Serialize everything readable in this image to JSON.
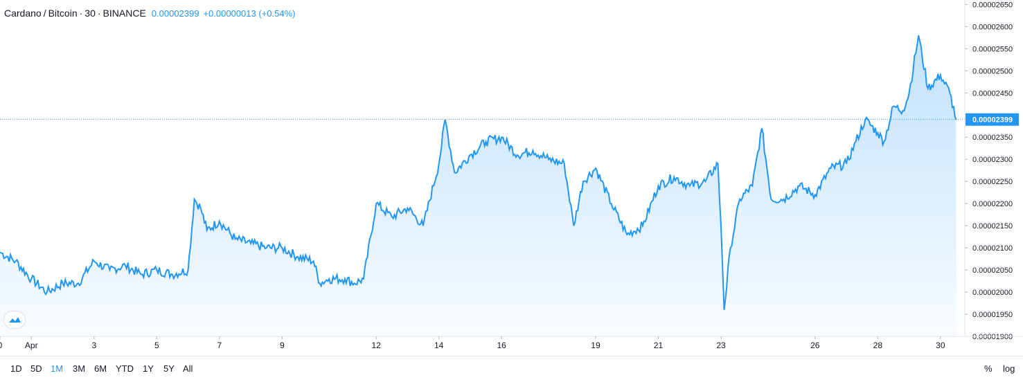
{
  "header": {
    "symbol": "Cardano",
    "sep": "/",
    "quote": "Bitcoin",
    "sep2": "·",
    "interval": "30",
    "sep3": "·",
    "exchange": "BINANCE",
    "last_value": "0.00002399",
    "change": "+0.00000013 (+0.54%)"
  },
  "price_tag": "0.00002399",
  "toolbar": {
    "timeframes": [
      "1D",
      "5D",
      "1M",
      "3M",
      "6M",
      "YTD",
      "1Y",
      "5Y",
      "All"
    ],
    "active_timeframe": "1M",
    "percent": "%",
    "log": "log"
  },
  "colors": {
    "line": "#2196f3",
    "accent": "#2196f3",
    "grid": "#e0e3eb"
  },
  "icons": {
    "logo": "tradingview-logo-icon"
  },
  "chart_data": {
    "type": "area",
    "ylim": [
      1.9e-05,
      2.66e-05
    ],
    "y_ticks": [
      "0.00002650",
      "0.00002600",
      "0.00002550",
      "0.00002500",
      "0.00002450",
      "0.00002350",
      "0.00002300",
      "0.00002250",
      "0.00002200",
      "0.00002150",
      "0.00002100",
      "0.00002050",
      "0.00002000",
      "0.00001950",
      "0.00001900"
    ],
    "y_tick_values": [
      2.65e-05,
      2.6e-05,
      2.55e-05,
      2.5e-05,
      2.45e-05,
      2.35e-05,
      2.3e-05,
      2.25e-05,
      2.2e-05,
      2.15e-05,
      2.1e-05,
      2.05e-05,
      2e-05,
      1.95e-05,
      1.9e-05
    ],
    "x_ticks": [
      "0",
      "Apr",
      "3",
      "5",
      "7",
      "9",
      "12",
      "14",
      "16",
      "19",
      "21",
      "23",
      "26",
      "28",
      "30"
    ],
    "x_tick_days": [
      0,
      1,
      3,
      5,
      7,
      9,
      12,
      14,
      16,
      19,
      21,
      23,
      26,
      28,
      30
    ],
    "x": [
      0,
      0.5,
      1.0,
      1.5,
      2.0,
      2.5,
      3.0,
      3.5,
      4.0,
      4.5,
      5.0,
      5.5,
      6.0,
      6.2,
      6.4,
      6.6,
      7.0,
      7.5,
      8.0,
      8.5,
      9.0,
      9.5,
      10.0,
      10.2,
      10.5,
      11.0,
      11.3,
      11.6,
      12.0,
      12.5,
      13.0,
      13.5,
      14.0,
      14.2,
      14.5,
      15.0,
      15.5,
      16.0,
      16.5,
      17.0,
      17.5,
      18.0,
      18.3,
      18.6,
      19.0,
      19.5,
      20.0,
      20.5,
      21.0,
      21.5,
      22.0,
      22.5,
      22.9,
      23.0,
      23.1,
      23.3,
      23.6,
      24.0,
      24.3,
      24.6,
      25.0,
      25.5,
      26.0,
      26.5,
      27.0,
      27.3,
      27.6,
      28.0,
      28.2,
      28.5,
      28.8,
      29.0,
      29.3,
      29.6,
      30.0,
      30.3,
      30.5
    ],
    "values": [
      2.09e-05,
      2.07e-05,
      2.03e-05,
      2e-05,
      2.02e-05,
      2.02e-05,
      2.07e-05,
      2.05e-05,
      2.06e-05,
      2.04e-05,
      2.05e-05,
      2.04e-05,
      2.05e-05,
      2.21e-05,
      2.19e-05,
      2.14e-05,
      2.16e-05,
      2.12e-05,
      2.11e-05,
      2.1e-05,
      2.1e-05,
      2.08e-05,
      2.07e-05,
      2.02e-05,
      2.03e-05,
      2.03e-05,
      2.02e-05,
      2.03e-05,
      2.2e-05,
      2.17e-05,
      2.19e-05,
      2.15e-05,
      2.29e-05,
      2.39e-05,
      2.27e-05,
      2.31e-05,
      2.34e-05,
      2.35e-05,
      2.31e-05,
      2.32e-05,
      2.3e-05,
      2.29e-05,
      2.15e-05,
      2.25e-05,
      2.28e-05,
      2.2e-05,
      2.13e-05,
      2.15e-05,
      2.24e-05,
      2.26e-05,
      2.24e-05,
      2.25e-05,
      2.29e-05,
      2.15e-05,
      1.96e-05,
      2.1e-05,
      2.21e-05,
      2.24e-05,
      2.37e-05,
      2.21e-05,
      2.21e-05,
      2.24e-05,
      2.22e-05,
      2.28e-05,
      2.29e-05,
      2.34e-05,
      2.39e-05,
      2.36e-05,
      2.34e-05,
      2.42e-05,
      2.41e-05,
      2.45e-05,
      2.58e-05,
      2.46e-05,
      2.49e-05,
      2.45e-05,
      2.39e-05
    ]
  }
}
